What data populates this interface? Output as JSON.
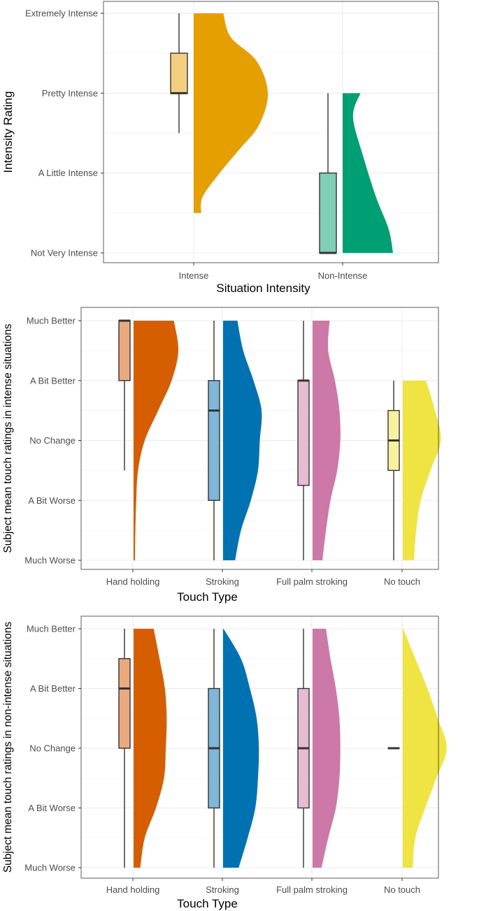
{
  "chart_data": [
    {
      "type": "raincloud",
      "xlabel": "Situation Intensity",
      "ylabel": "Intensity Rating",
      "categories": [
        "Intense",
        "Non-Intense"
      ],
      "y_tick_labels": [
        "Not Very Intense",
        "A Little Intense",
        "Pretty Intense",
        "Extremely Intense"
      ],
      "ylim": [
        1,
        4
      ],
      "series": [
        {
          "category": "Intense",
          "box_color": "#f5cf80",
          "violin_color": "#e69f00",
          "min": 2.5,
          "q1": 3.0,
          "median": 3.0,
          "q3": 3.5,
          "max": 4.0,
          "range": [
            1.5,
            4.0
          ]
        },
        {
          "category": "Non-Intense",
          "box_color": "#7fcfb7",
          "violin_color": "#009e73",
          "min": 1.0,
          "q1": 1.0,
          "median": 1.0,
          "q3": 2.0,
          "max": 3.0,
          "range": [
            1.0,
            3.0
          ]
        }
      ]
    },
    {
      "type": "raincloud",
      "xlabel": "Touch Type",
      "ylabel": "Subject mean touch ratings in intense situations",
      "categories": [
        "Hand holding",
        "Stroking",
        "Full palm stroking",
        "No touch"
      ],
      "y_tick_labels": [
        "Much Worse",
        "A Bit Worse",
        "No Change",
        "A Bit Better",
        "Much Better"
      ],
      "ylim": [
        -2,
        2
      ],
      "series": [
        {
          "category": "Hand holding",
          "box_color": "#eba980",
          "violin_color": "#d55e00",
          "min": -0.5,
          "q1": 1.0,
          "median": 2.0,
          "q3": 2.0,
          "max": 2.0,
          "range": [
            -2.0,
            2.0
          ]
        },
        {
          "category": "Stroking",
          "box_color": "#7fb6d9",
          "violin_color": "#0072b2",
          "min": -2.0,
          "q1": -1.0,
          "median": 0.5,
          "q3": 1.0,
          "max": 2.0,
          "range": [
            -2.0,
            2.0
          ]
        },
        {
          "category": "Full palm stroking",
          "box_color": "#e6bcd2",
          "violin_color": "#cc79a7",
          "min": -2.0,
          "q1": -0.75,
          "median": 1.0,
          "q3": 1.0,
          "max": 2.0,
          "range": [
            -2.0,
            2.0
          ]
        },
        {
          "category": "No touch",
          "box_color": "#f8f29f",
          "violin_color": "#f0e442",
          "min": -2.0,
          "q1": -0.5,
          "median": 0.0,
          "q3": 0.5,
          "max": 1.0,
          "range": [
            -2.0,
            1.0
          ]
        }
      ]
    },
    {
      "type": "raincloud",
      "xlabel": "Touch Type",
      "ylabel": "Subject mean touch ratings in non-intense situations",
      "categories": [
        "Hand holding",
        "Stroking",
        "Full palm stroking",
        "No touch"
      ],
      "y_tick_labels": [
        "Much Worse",
        "A Bit Worse",
        "No Change",
        "A Bit Better",
        "Much Better"
      ],
      "ylim": [
        -2,
        2
      ],
      "series": [
        {
          "category": "Hand holding",
          "box_color": "#eba980",
          "violin_color": "#d55e00",
          "min": -2.0,
          "q1": 0.0,
          "median": 1.0,
          "q3": 1.5,
          "max": 2.0,
          "range": [
            -2.0,
            2.0
          ]
        },
        {
          "category": "Stroking",
          "box_color": "#7fb6d9",
          "violin_color": "#0072b2",
          "min": -2.0,
          "q1": -1.0,
          "median": 0.0,
          "q3": 1.0,
          "max": 2.0,
          "range": [
            -2.0,
            2.0
          ]
        },
        {
          "category": "Full palm stroking",
          "box_color": "#e6bcd2",
          "violin_color": "#cc79a7",
          "min": -2.0,
          "q1": -1.0,
          "median": 0.0,
          "q3": 1.0,
          "max": 2.0,
          "range": [
            -2.0,
            2.0
          ]
        },
        {
          "category": "No touch",
          "box_color": "#f8f29f",
          "violin_color": "#f0e442",
          "min": 0.0,
          "q1": 0.0,
          "median": 0.0,
          "q3": 0.0,
          "max": 0.0,
          "range": [
            -2.0,
            2.0
          ]
        }
      ]
    }
  ]
}
